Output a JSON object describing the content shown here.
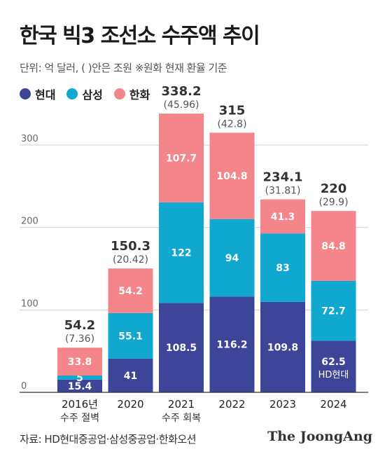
{
  "title": "한국 빅3 조선소 수주액 추이",
  "subtitle": "단위: 억 달러, ( )안은 조원  ※원화 현재 환율 기준",
  "source": "자료: HD현대중공업·삼성중공업·한화오션",
  "logo": "The JoongAng",
  "colors": {
    "hyundai": "#3d4599",
    "samsung": "#11a8cf",
    "hanwha": "#f4858a"
  },
  "chart_data": {
    "type": "bar",
    "stacked": true,
    "categories": [
      "2016년",
      "2020",
      "2021",
      "2022",
      "2023",
      "2024"
    ],
    "category_notes": [
      "수주 절벽",
      "",
      "수주 회복",
      "",
      "",
      ""
    ],
    "series": [
      {
        "name": "현대",
        "values": [
          15.4,
          41,
          108.5,
          116.2,
          109.8,
          62.5
        ]
      },
      {
        "name": "삼성",
        "values": [
          5,
          55.1,
          122,
          94,
          83,
          72.7
        ]
      },
      {
        "name": "한화",
        "values": [
          33.8,
          54.2,
          107.7,
          104.8,
          41.3,
          84.8
        ]
      }
    ],
    "totals": [
      "54.2",
      "150.3",
      "338.2",
      "315",
      "234.1",
      "220"
    ],
    "totals_krw": [
      "(7.36)",
      "(20.42)",
      "(45.96)",
      "(42.8)",
      "(31.81)",
      "(29.9)"
    ],
    "hyundai_label_2024_note": "HD현대",
    "ylim": [
      0,
      340
    ],
    "yticks": [
      0,
      100,
      200,
      300
    ],
    "grid": true,
    "legend_position": "top-left"
  }
}
